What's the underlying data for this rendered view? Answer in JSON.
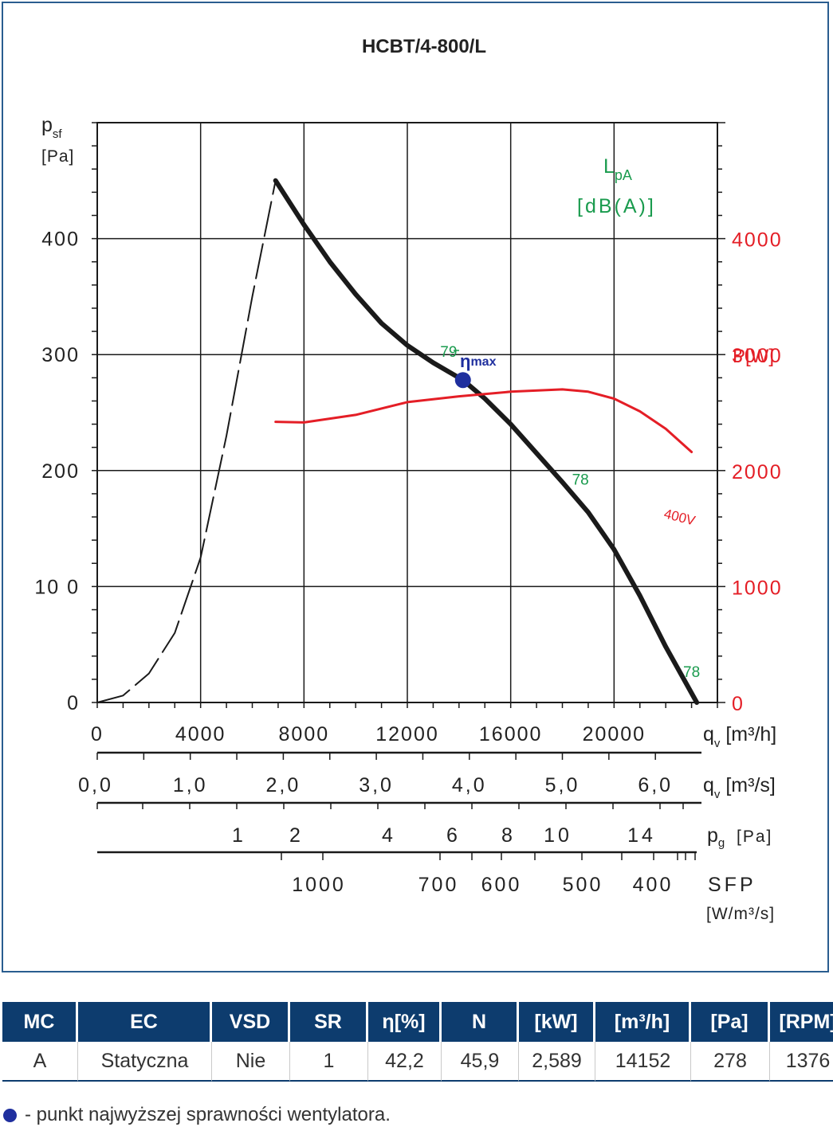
{
  "title": "HCBT/4-800/L",
  "colors": {
    "curve": "#1a1a1a",
    "power": "#e41e26",
    "noise": "#1a9b4e",
    "eta_point": "#1f2f9e",
    "header_bg": "#0d3c6e",
    "frame": "#2a5d8f"
  },
  "chart_data": {
    "type": "line",
    "title": "HCBT/4-800/L",
    "x_axis": {
      "label_main": "q",
      "label_sub": "v",
      "unit": "[m³/h]",
      "range": [
        0,
        24000
      ],
      "ticks": [
        0,
        4000,
        8000,
        12000,
        16000,
        20000
      ],
      "grid": true
    },
    "y_axis_left": {
      "label_main": "p",
      "label_sub": "sf",
      "unit": "[Pa]",
      "range": [
        0,
        500
      ],
      "ticks": [
        {
          "v": 0,
          "t": "0"
        },
        {
          "v": 100,
          "t": "10 0"
        },
        {
          "v": 200,
          "t": "200"
        },
        {
          "v": 300,
          "t": "300"
        },
        {
          "v": 400,
          "t": "400"
        }
      ],
      "grid": true
    },
    "y_axis_right": {
      "label": "P[W]",
      "range": [
        0,
        5000
      ],
      "ticks": [
        0,
        1000,
        2000,
        3000,
        4000
      ]
    },
    "noise_label": {
      "main": "L",
      "sub": "pA",
      "unit": "[dB(A)]"
    },
    "series": [
      {
        "name": "",
        "axis": "left",
        "style": "dashed",
        "x": [
          0,
          1000,
          2000,
          3000,
          4000,
          5000,
          6000,
          6900
        ],
        "y": [
          0,
          6,
          25,
          60,
          125,
          230,
          350,
          450
        ]
      },
      {
        "name": "",
        "axis": "left",
        "style": "solid",
        "x": [
          6900,
          8000,
          9000,
          10000,
          11000,
          12000,
          13000,
          14152,
          15000,
          16000,
          17000,
          18000,
          19000,
          20000,
          21000,
          22000,
          23200
        ],
        "y": [
          450,
          412,
          380,
          352,
          327,
          308,
          293,
          278,
          262,
          240,
          215,
          190,
          164,
          132,
          92,
          48,
          0
        ]
      },
      {
        "name": "400V",
        "axis": "right",
        "style": "solid",
        "x": [
          6900,
          8000,
          10000,
          12000,
          14000,
          16000,
          18000,
          19000,
          20000,
          21000,
          22000,
          23000
        ],
        "y": [
          2420,
          2415,
          2480,
          2590,
          2640,
          2680,
          2700,
          2680,
          2620,
          2510,
          2360,
          2160
        ]
      }
    ],
    "annotations": [
      {
        "text": "79",
        "x": 13600,
        "y": 298
      },
      {
        "text": "78",
        "x": 18700,
        "y": 188
      },
      {
        "text": "78",
        "x": 23000,
        "y": 22
      }
    ],
    "eta_point": {
      "x": 14152,
      "y": 278,
      "label_main": "η",
      "label_sub": "max"
    },
    "extra_axes": [
      {
        "label_main": "q",
        "label_sub": "v",
        "unit": "[m³/s]",
        "ticks": [
          {
            "v": 0,
            "t": "0,0"
          },
          {
            "v": 1,
            "t": "1,0"
          },
          {
            "v": 2,
            "t": "2,0"
          },
          {
            "v": 3,
            "t": "3,0"
          },
          {
            "v": 4,
            "t": "4,0"
          },
          {
            "v": 5,
            "t": "5,0"
          },
          {
            "v": 6,
            "t": "6,0"
          }
        ]
      },
      {
        "label_main": "p",
        "label_sub": "g",
        "unit": "[Pa]",
        "ticks": [
          "1",
          "2",
          "4",
          "6",
          "8",
          "10",
          "14"
        ]
      },
      {
        "label": "SFP",
        "unit": "[W/m³/s]",
        "ticks": [
          "1000",
          "700",
          "600",
          "500",
          "400"
        ]
      }
    ]
  },
  "table": {
    "headers": [
      "MC",
      "EC",
      "VSD",
      "SR",
      "η[%]",
      "N",
      "[kW]",
      "[m³/h]",
      "[Pa]",
      "[RPM]"
    ],
    "row": [
      "A",
      "Statyczna",
      "Nie",
      "1",
      "42,2",
      "45,9",
      "2,589",
      "14152",
      "278",
      "1376"
    ]
  },
  "footnote": "- punkt najwyższej sprawności wentylatora."
}
